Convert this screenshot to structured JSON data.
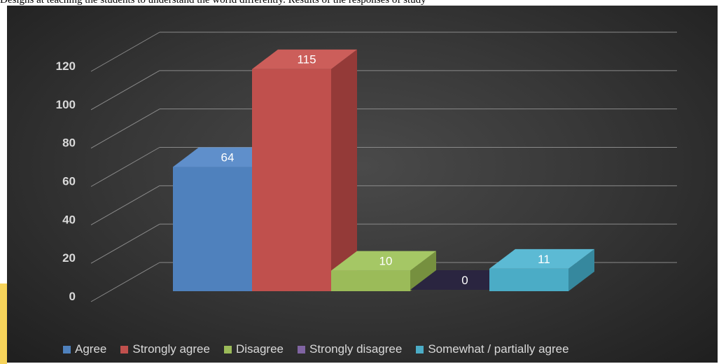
{
  "caption": "Designs at teaching the students to understand the world differently. Results of the responses of study",
  "chart_data": {
    "type": "bar",
    "categories": [
      "Agree",
      "Strongly agree",
      "Disagree",
      "Strongly disagree",
      "Somewhat / partially agree"
    ],
    "values": [
      64,
      115,
      10,
      0,
      11
    ],
    "ylim": [
      0,
      120
    ],
    "yticks": [
      "0",
      "20",
      "40",
      "60",
      "80",
      "100",
      "120"
    ],
    "grid": true,
    "legend_position": "bottom",
    "style": "3d",
    "colors": [
      "#4f81bd",
      "#c0504d",
      "#9bbb59",
      "#8064a2",
      "#4bacc6"
    ],
    "dark_colors": [
      "#3a6296",
      "#943a38",
      "#76903f",
      "#1e1a2e",
      "#36889e"
    ],
    "light_colors": [
      "#5f8fcb",
      "#cc5e5a",
      "#a5c765",
      "#2a2540",
      "#5cbad4"
    ]
  }
}
